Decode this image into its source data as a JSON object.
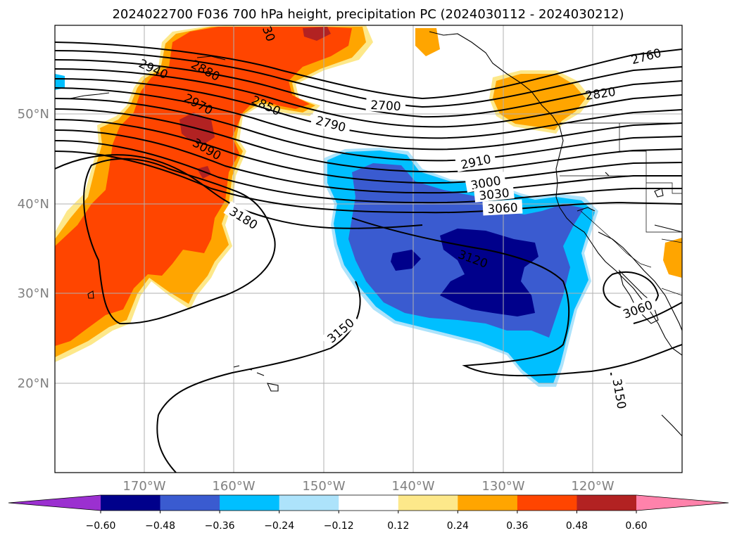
{
  "title": "2024022700 F036 700 hPa height, precipitation PC (2024030112 - 2024030212)",
  "longitude_labels": [
    "170°W",
    "160°W",
    "150°W",
    "140°W",
    "130°W",
    "120°W"
  ],
  "latitude_labels": [
    "50°N",
    "40°N",
    "30°N",
    "20°N"
  ],
  "colorbar": {
    "tick_labels": [
      "−0.60",
      "−0.48",
      "−0.36",
      "−0.24",
      "−0.12",
      "0.12",
      "0.24",
      "0.36",
      "0.48",
      "0.60"
    ],
    "colors": [
      "#9b30d0",
      "#00008b",
      "#3a5bd0",
      "#00bfff",
      "#ade3fb",
      "#ffffff",
      "#fde88a",
      "#ffa500",
      "#ff4500",
      "#b22222",
      "#ff82ab"
    ]
  },
  "contour_labels": [
    "2760",
    "2820",
    "2700",
    "2790",
    "2850",
    "2880",
    "2940",
    "2970",
    "3090",
    "2910",
    "3000",
    "3030",
    "3060",
    "3180",
    "3120",
    "3150",
    "3060",
    "3150",
    "30"
  ],
  "palette": {
    "orange_light": "#fde88a",
    "orange": "#ffa500",
    "red_orange": "#ff4500",
    "dark_red": "#b22222",
    "sky": "#00bfff",
    "blue": "#3a5bd0",
    "navy": "#00008b"
  }
}
